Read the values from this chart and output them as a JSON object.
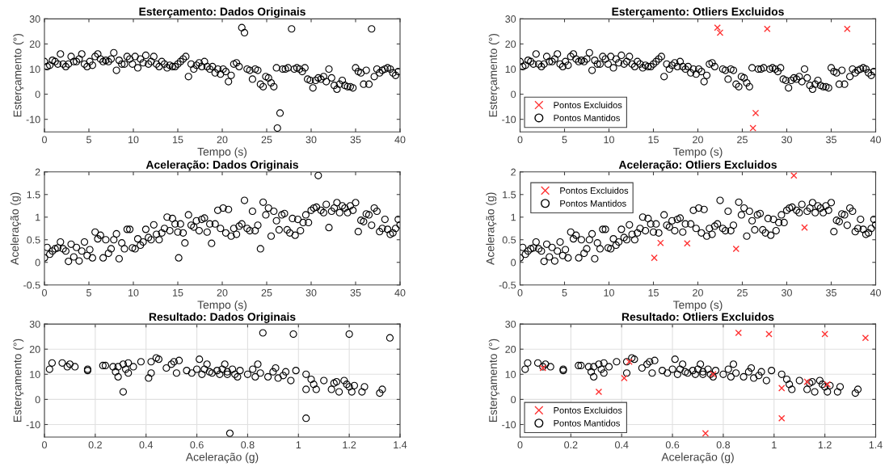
{
  "chart_data": [
    {
      "type": "scatter",
      "title": "Esterçamento: Dados Originais",
      "xlabel": "Tempo (s)",
      "ylabel": "Esterçamento (°)",
      "xlim": [
        0,
        40
      ],
      "xticks": [
        0,
        5,
        10,
        15,
        20,
        25,
        30,
        35,
        40
      ],
      "ylim": [
        -15,
        30
      ],
      "yticks": [
        -10,
        0,
        10,
        20,
        30
      ],
      "grid": false,
      "legend": false,
      "series": [
        {
          "marker": "circle",
          "color": "#000000",
          "x": [
            0,
            0.3,
            0.6,
            0.9,
            1.2,
            1.5,
            1.8,
            2.1,
            2.4,
            2.7,
            3,
            3.3,
            3.6,
            3.9,
            4.2,
            4.5,
            4.8,
            5.1,
            5.4,
            5.7,
            6,
            6.3,
            6.6,
            6.9,
            7.2,
            7.5,
            7.8,
            8.1,
            8.4,
            8.7,
            9,
            9.3,
            9.6,
            9.9,
            10.2,
            10.5,
            10.8,
            11.1,
            11.4,
            11.7,
            12,
            12.3,
            12.6,
            12.9,
            13.2,
            13.5,
            13.8,
            14.1,
            14.4,
            14.7,
            15,
            15.3,
            15.6,
            15.9,
            16.2,
            16.5,
            16.8,
            17.1,
            17.4,
            17.7,
            18,
            18.3,
            18.6,
            18.9,
            19.2,
            19.5,
            19.8,
            20.1,
            20.4,
            20.7,
            21,
            21.3,
            21.6,
            21.9,
            22.2,
            22.5,
            22.8,
            23.1,
            23.4,
            23.7,
            24,
            24.3,
            24.6,
            24.9,
            25.2,
            25.5,
            25.8,
            26.1,
            26.2,
            26.5,
            26.8,
            27.1,
            27.4,
            27.8,
            28.1,
            28.4,
            28.7,
            29,
            29.3,
            29.6,
            29.9,
            30.2,
            30.5,
            30.8,
            31.1,
            31.4,
            31.7,
            32,
            32.3,
            32.6,
            32.9,
            33.2,
            33.5,
            33.8,
            34.1,
            34.4,
            34.7,
            35,
            35.3,
            35.6,
            35.9,
            36.2,
            36.5,
            36.8,
            37.1,
            37.4,
            37.7,
            38,
            38.3,
            38.6,
            38.9,
            39.2,
            39.5,
            39.8
          ],
          "values": [
            13,
            11,
            11.5,
            13.5,
            13,
            12,
            16,
            12,
            11,
            12,
            15,
            13,
            13,
            14,
            16,
            12,
            11,
            13,
            11.5,
            15,
            16,
            14,
            13,
            13.5,
            13,
            14,
            16.5,
            9.5,
            13.5,
            12,
            12,
            15,
            14,
            12,
            15,
            10.5,
            14,
            12.5,
            15.5,
            12,
            13,
            15,
            12,
            11,
            13,
            12,
            10.5,
            11.5,
            11,
            11,
            12,
            13,
            14,
            15,
            7,
            12,
            10,
            11.5,
            12.5,
            11,
            13,
            11,
            10,
            11,
            8.5,
            10,
            8,
            10,
            9,
            5,
            7.5,
            12,
            12.5,
            11,
            26.5,
            24.5,
            10,
            9.5,
            6,
            10,
            9.5,
            4,
            3,
            7,
            6.5,
            4.5,
            3,
            10.5,
            -13.5,
            -7.5,
            10,
            10,
            10.5,
            26,
            10,
            10.5,
            10,
            9,
            10.5,
            6,
            5.5,
            2.5,
            5.5,
            6.5,
            6,
            7,
            5,
            10,
            6.5,
            3.5,
            2,
            4,
            5.5,
            3.5,
            3,
            3,
            2.5,
            10.5,
            9,
            8.5,
            4,
            9.5,
            4,
            26,
            7,
            10,
            8.5,
            9.5,
            10,
            10.5,
            10,
            8.5,
            7.5,
            9
          ]
        }
      ]
    },
    {
      "type": "scatter",
      "title": "Esterçamento: Otliers Excluidos",
      "xlabel": "Tempo (s)",
      "ylabel": "Esterçamento (°)",
      "xlim": [
        0,
        40
      ],
      "xticks": [
        0,
        5,
        10,
        15,
        20,
        25,
        30,
        35,
        40
      ],
      "ylim": [
        -15,
        30
      ],
      "yticks": [
        -10,
        0,
        10,
        20,
        30
      ],
      "grid": false,
      "legend": "bottom left",
      "series": [
        {
          "name": "Pontos Excluidos",
          "marker": "cross",
          "color": "#ff3333",
          "x": [
            22.2,
            22.5,
            26.2,
            26.5,
            27.8,
            36.8
          ],
          "values": [
            26.5,
            24.5,
            -13.5,
            -7.5,
            26,
            26
          ]
        },
        {
          "name": "Pontos Mantidos",
          "marker": "circle",
          "color": "#000000",
          "x": [
            0,
            0.3,
            0.6,
            0.9,
            1.2,
            1.5,
            1.8,
            2.1,
            2.4,
            2.7,
            3,
            3.3,
            3.6,
            3.9,
            4.2,
            4.5,
            4.8,
            5.1,
            5.4,
            5.7,
            6,
            6.3,
            6.6,
            6.9,
            7.2,
            7.5,
            7.8,
            8.1,
            8.4,
            8.7,
            9,
            9.3,
            9.6,
            9.9,
            10.2,
            10.5,
            10.8,
            11.1,
            11.4,
            11.7,
            12,
            12.3,
            12.6,
            12.9,
            13.2,
            13.5,
            13.8,
            14.1,
            14.4,
            14.7,
            15,
            15.3,
            15.6,
            15.9,
            16.2,
            16.5,
            16.8,
            17.1,
            17.4,
            17.7,
            18,
            18.3,
            18.6,
            18.9,
            19.2,
            19.5,
            19.8,
            20.1,
            20.4,
            20.7,
            21,
            21.3,
            21.6,
            21.9,
            22.8,
            23.1,
            23.4,
            23.7,
            24,
            24.3,
            24.6,
            24.9,
            25.2,
            25.5,
            25.8,
            26.1,
            26.8,
            27.1,
            27.4,
            28.1,
            28.4,
            28.7,
            29,
            29.3,
            29.6,
            29.9,
            30.2,
            30.5,
            30.8,
            31.1,
            31.4,
            31.7,
            32,
            32.3,
            32.6,
            32.9,
            33.2,
            33.5,
            33.8,
            34.1,
            34.4,
            34.7,
            35,
            35.3,
            35.6,
            35.9,
            36.2,
            36.5,
            37.1,
            37.4,
            37.7,
            38,
            38.3,
            38.6,
            38.9,
            39.2,
            39.5,
            39.8
          ],
          "values": [
            13,
            11,
            11.5,
            13.5,
            13,
            12,
            16,
            12,
            11,
            12,
            15,
            13,
            13,
            14,
            16,
            12,
            11,
            13,
            11.5,
            15,
            16,
            14,
            13,
            13.5,
            13,
            14,
            16.5,
            9.5,
            13.5,
            12,
            12,
            15,
            14,
            12,
            15,
            10.5,
            14,
            12.5,
            15.5,
            12,
            13,
            15,
            12,
            11,
            13,
            12,
            10.5,
            11.5,
            11,
            11,
            12,
            13,
            14,
            15,
            7,
            12,
            10,
            11.5,
            12.5,
            11,
            13,
            11,
            10,
            11,
            8.5,
            10,
            8,
            10,
            9,
            5,
            7.5,
            12,
            12.5,
            11,
            10,
            9.5,
            6,
            10,
            9.5,
            4,
            3,
            7,
            6.5,
            4.5,
            3,
            10.5,
            10,
            10,
            10.5,
            10,
            10.5,
            10,
            9,
            10.5,
            6,
            5.5,
            2.5,
            5.5,
            6.5,
            6,
            7,
            5,
            10,
            6.5,
            3.5,
            2,
            4,
            5.5,
            3.5,
            3,
            3,
            2.5,
            10.5,
            9,
            8.5,
            4,
            9.5,
            4,
            7,
            10,
            8.5,
            9.5,
            10,
            10.5,
            10,
            8.5,
            7.5,
            9
          ]
        }
      ]
    },
    {
      "type": "scatter",
      "title": "Aceleração: Dados Originais",
      "xlabel": "Tempo (s)",
      "ylabel": "Aceleração (g)",
      "xlim": [
        0,
        40
      ],
      "xticks": [
        0,
        5,
        10,
        15,
        20,
        25,
        30,
        35,
        40
      ],
      "ylim": [
        -0.5,
        2
      ],
      "yticks": [
        -0.5,
        0,
        0.5,
        1,
        1.5,
        2
      ],
      "grid": false,
      "legend": false,
      "series": [
        {
          "marker": "circle",
          "color": "#000000",
          "x": [
            0,
            0.3,
            0.6,
            0.9,
            1.2,
            1.5,
            1.8,
            2.1,
            2.4,
            2.7,
            3,
            3.3,
            3.6,
            3.9,
            4.2,
            4.5,
            4.8,
            5.1,
            5.4,
            5.7,
            6,
            6.3,
            6.6,
            6.9,
            7.2,
            7.5,
            7.8,
            8.1,
            8.4,
            8.7,
            9,
            9.3,
            9.6,
            9.9,
            10.2,
            10.5,
            10.8,
            11.1,
            11.4,
            11.7,
            12,
            12.3,
            12.6,
            12.9,
            13.2,
            13.5,
            13.8,
            14.1,
            14.4,
            14.7,
            15,
            15.1,
            15.3,
            15.6,
            15.8,
            16.2,
            16.5,
            16.8,
            17.1,
            17.4,
            17.7,
            18,
            18.3,
            18.6,
            18.8,
            19.2,
            19.5,
            19.8,
            20.1,
            20.4,
            20.7,
            21,
            21.3,
            21.6,
            21.9,
            22.2,
            22.5,
            22.8,
            23.1,
            23.4,
            23.7,
            24,
            24.3,
            24.6,
            24.9,
            25.2,
            25.5,
            25.8,
            26.1,
            26.4,
            26.7,
            27,
            27.3,
            27.6,
            27.9,
            28.2,
            28.5,
            28.8,
            29.1,
            29.4,
            29.7,
            30,
            30.3,
            30.6,
            30.8,
            31.1,
            31.4,
            31.7,
            32,
            32.3,
            32.6,
            32.9,
            33.2,
            33.5,
            33.8,
            34.1,
            34.4,
            34.7,
            35,
            35.3,
            35.6,
            35.9,
            36.2,
            36.5,
            36.8,
            37.1,
            37.4,
            37.7,
            38,
            38.3,
            38.6,
            38.9,
            39.2,
            39.5,
            39.8,
            40
          ],
          "values": [
            0.1,
            0.33,
            0.18,
            0.25,
            0.3,
            0.32,
            0.45,
            0.3,
            0.25,
            0.02,
            0.4,
            0.12,
            0.33,
            0.03,
            0.25,
            0.45,
            0.15,
            0.28,
            0.1,
            0.67,
            0.52,
            0.6,
            0.1,
            0.5,
            0.2,
            0.3,
            0.5,
            0.63,
            0.08,
            0.43,
            0.3,
            0.73,
            0.73,
            0.32,
            0.3,
            0.52,
            0.38,
            0.45,
            0.73,
            0.55,
            0.5,
            0.83,
            0.62,
            0.5,
            0.65,
            0.75,
            1,
            0.7,
            0.97,
            0.85,
            0.67,
            0.1,
            0.85,
            0.65,
            0.43,
            1.05,
            0.82,
            0.78,
            0.92,
            0.7,
            0.95,
            0.98,
            0.67,
            0.85,
            0.42,
            0.85,
            1.15,
            0.75,
            1.2,
            0.65,
            1.17,
            0.58,
            0.75,
            0.62,
            0.8,
            0.85,
            1.37,
            0.75,
            0.7,
            1.13,
            0.7,
            0.82,
            0.3,
            1.33,
            1.05,
            1.2,
            0.58,
            1.13,
            0.92,
            0.72,
            1.05,
            1.08,
            0.72,
            0.65,
            0.97,
            0.6,
            0.95,
            0.7,
            0.88,
            1.05,
            0.88,
            1.15,
            1.2,
            1.22,
            1.92,
            1.15,
            1.1,
            1.28,
            0.77,
            1.13,
            1.2,
            1.32,
            1.1,
            1.25,
            1.2,
            1.1,
            1.25,
            1.15,
            1.32,
            0.68,
            0.93,
            0.9,
            1.07,
            1.05,
            0.82,
            1.2,
            1.13,
            0.68,
            0.75,
            0.95,
            0.73,
            0.62,
            0.65,
            0.75,
            0.95,
            0.83
          ]
        }
      ]
    },
    {
      "type": "scatter",
      "title": "Aceleração: Otliers Excluidos",
      "xlabel": "Tempo (s)",
      "ylabel": "Aceleração (g)",
      "xlim": [
        0,
        40
      ],
      "xticks": [
        0,
        5,
        10,
        15,
        20,
        25,
        30,
        35,
        40
      ],
      "ylim": [
        -0.5,
        2
      ],
      "yticks": [
        -0.5,
        0,
        0.5,
        1,
        1.5,
        2
      ],
      "grid": false,
      "legend": "top left",
      "series": [
        {
          "name": "Pontos Excluidos",
          "marker": "cross",
          "color": "#ff3333",
          "x": [
            15.1,
            15.8,
            18.8,
            24.3,
            30.8,
            32
          ],
          "values": [
            0.1,
            0.43,
            0.42,
            0.3,
            1.92,
            0.77
          ]
        },
        {
          "name": "Pontos Mantidos",
          "marker": "circle",
          "color": "#000000",
          "x": [
            0,
            0.3,
            0.6,
            0.9,
            1.2,
            1.5,
            1.8,
            2.1,
            2.4,
            2.7,
            3,
            3.3,
            3.6,
            3.9,
            4.2,
            4.5,
            4.8,
            5.1,
            5.4,
            5.7,
            6,
            6.3,
            6.6,
            6.9,
            7.2,
            7.5,
            7.8,
            8.1,
            8.4,
            8.7,
            9,
            9.3,
            9.6,
            9.9,
            10.2,
            10.5,
            10.8,
            11.1,
            11.4,
            11.7,
            12,
            12.3,
            12.6,
            12.9,
            13.2,
            13.5,
            13.8,
            14.1,
            14.4,
            14.7,
            15,
            15.3,
            15.6,
            16.2,
            16.5,
            16.8,
            17.1,
            17.4,
            17.7,
            18,
            18.3,
            18.6,
            19.2,
            19.5,
            19.8,
            20.1,
            20.4,
            20.7,
            21,
            21.3,
            21.6,
            21.9,
            22.2,
            22.5,
            22.8,
            23.1,
            23.4,
            23.7,
            24,
            24.6,
            24.9,
            25.2,
            25.5,
            25.8,
            26.1,
            26.4,
            26.7,
            27,
            27.3,
            27.6,
            27.9,
            28.2,
            28.5,
            28.8,
            29.1,
            29.4,
            29.7,
            30,
            30.3,
            30.6,
            31.1,
            31.4,
            31.7,
            32.3,
            32.6,
            32.9,
            33.2,
            33.5,
            33.8,
            34.1,
            34.4,
            34.7,
            35,
            35.3,
            35.6,
            35.9,
            36.2,
            36.5,
            36.8,
            37.1,
            37.4,
            37.7,
            38,
            38.3,
            38.6,
            38.9,
            39.2,
            39.5,
            39.8,
            40
          ],
          "values": [
            0.1,
            0.33,
            0.18,
            0.25,
            0.3,
            0.32,
            0.45,
            0.3,
            0.25,
            0.02,
            0.4,
            0.12,
            0.33,
            0.03,
            0.25,
            0.45,
            0.15,
            0.28,
            0.1,
            0.67,
            0.52,
            0.6,
            0.1,
            0.5,
            0.2,
            0.3,
            0.5,
            0.63,
            0.08,
            0.43,
            0.3,
            0.73,
            0.73,
            0.32,
            0.3,
            0.52,
            0.38,
            0.45,
            0.73,
            0.55,
            0.5,
            0.83,
            0.62,
            0.5,
            0.65,
            0.75,
            1,
            0.7,
            0.97,
            0.85,
            0.67,
            0.85,
            0.65,
            1.05,
            0.82,
            0.78,
            0.92,
            0.7,
            0.95,
            0.98,
            0.67,
            0.85,
            0.85,
            1.15,
            0.75,
            1.2,
            0.65,
            1.17,
            0.58,
            0.75,
            0.62,
            0.8,
            0.85,
            1.37,
            0.75,
            0.7,
            1.13,
            0.7,
            0.82,
            1.33,
            1.05,
            1.2,
            0.58,
            1.13,
            0.92,
            0.72,
            1.05,
            1.08,
            0.72,
            0.65,
            0.97,
            0.6,
            0.95,
            0.7,
            0.88,
            1.05,
            0.88,
            1.15,
            1.2,
            1.22,
            1.15,
            1.1,
            1.28,
            1.13,
            1.2,
            1.32,
            1.1,
            1.25,
            1.2,
            1.1,
            1.25,
            1.15,
            1.32,
            0.68,
            0.93,
            0.9,
            1.07,
            1.05,
            0.82,
            1.2,
            1.13,
            0.68,
            0.75,
            0.95,
            0.73,
            0.62,
            0.65,
            0.75,
            0.95,
            0.83
          ]
        }
      ]
    },
    {
      "type": "scatter",
      "title": "Resultado: Dados Originais",
      "xlabel": "Aceleração (g)",
      "ylabel": "Esterçamento (°)",
      "xlim": [
        0,
        1.4
      ],
      "xticks": [
        0,
        0.2,
        0.4,
        0.6,
        0.8,
        1,
        1.2,
        1.4
      ],
      "ylim": [
        -15,
        30
      ],
      "yticks": [
        -10,
        0,
        10,
        20,
        30
      ],
      "grid": true,
      "legend": false,
      "series": [
        {
          "marker": "circle",
          "color": "#000000",
          "x": [
            0.02,
            0.03,
            0.07,
            0.09,
            0.1,
            0.12,
            0.17,
            0.17,
            0.23,
            0.24,
            0.27,
            0.28,
            0.29,
            0.29,
            0.31,
            0.31,
            0.32,
            0.33,
            0.33,
            0.35,
            0.38,
            0.41,
            0.42,
            0.42,
            0.44,
            0.45,
            0.48,
            0.5,
            0.51,
            0.52,
            0.53,
            0.56,
            0.58,
            0.6,
            0.61,
            0.62,
            0.63,
            0.64,
            0.65,
            0.66,
            0.68,
            0.69,
            0.7,
            0.71,
            0.72,
            0.72,
            0.73,
            0.74,
            0.75,
            0.76,
            0.77,
            0.8,
            0.82,
            0.83,
            0.84,
            0.85,
            0.86,
            0.88,
            0.9,
            0.91,
            0.92,
            0.94,
            0.95,
            0.97,
            0.98,
            0.99,
            1.03,
            1.03,
            1.03,
            1.05,
            1.06,
            1.07,
            1.1,
            1.13,
            1.14,
            1.15,
            1.16,
            1.18,
            1.19,
            1.2,
            1.2,
            1.21,
            1.22,
            1.25,
            1.26,
            1.32,
            1.33,
            1.36
          ],
          "values": [
            12,
            14.5,
            14.5,
            13,
            14,
            13,
            11.5,
            12,
            13.5,
            13.5,
            13,
            11,
            9,
            13,
            3,
            14,
            12,
            10.5,
            14.5,
            13,
            15,
            8.5,
            10.5,
            15,
            16.5,
            16,
            12.5,
            14,
            15,
            10.5,
            15.5,
            11.5,
            10.5,
            12,
            16,
            10,
            12,
            14,
            11,
            10.5,
            11.5,
            10,
            12,
            14,
            11,
            10,
            -13.5,
            12,
            10,
            9,
            11.5,
            10,
            12,
            9,
            14,
            10.5,
            26.5,
            9,
            11,
            12.5,
            8.5,
            9.5,
            11,
            7.5,
            26,
            11.5,
            10,
            4,
            -7.5,
            8,
            6,
            4,
            7.5,
            4,
            6.5,
            7,
            3,
            7.5,
            6,
            26,
            5,
            3,
            5.5,
            3,
            5,
            2.5,
            4,
            24.5
          ]
        }
      ]
    },
    {
      "type": "scatter",
      "title": "Resultado: Otliers Excluidos",
      "xlabel": "Aceleração (g)",
      "ylabel": "Esterçamento (°)",
      "xlim": [
        0,
        1.4
      ],
      "xticks": [
        0,
        0.2,
        0.4,
        0.6,
        0.8,
        1,
        1.2,
        1.4
      ],
      "ylim": [
        -15,
        30
      ],
      "yticks": [
        -10,
        0,
        10,
        20,
        30
      ],
      "grid": true,
      "legend": "bottom left",
      "series": [
        {
          "name": "Pontos Excluidos",
          "marker": "cross",
          "color": "#ff3333",
          "x": [
            0.09,
            0.31,
            0.41,
            0.43,
            0.73,
            0.76,
            0.86,
            0.98,
            1.03,
            1.03,
            1.13,
            1.2,
            1.21,
            1.36
          ],
          "values": [
            12.5,
            3,
            8.5,
            15,
            -13.5,
            10,
            26.5,
            26,
            4.5,
            -7.5,
            7,
            26,
            6,
            24.5
          ]
        },
        {
          "name": "Pontos Mantidos",
          "marker": "circle",
          "color": "#000000",
          "x": [
            0.02,
            0.03,
            0.07,
            0.09,
            0.1,
            0.12,
            0.17,
            0.17,
            0.23,
            0.24,
            0.27,
            0.28,
            0.29,
            0.29,
            0.31,
            0.32,
            0.33,
            0.33,
            0.35,
            0.38,
            0.42,
            0.42,
            0.44,
            0.45,
            0.48,
            0.5,
            0.51,
            0.52,
            0.53,
            0.56,
            0.58,
            0.6,
            0.61,
            0.62,
            0.63,
            0.64,
            0.65,
            0.66,
            0.68,
            0.69,
            0.7,
            0.71,
            0.72,
            0.72,
            0.74,
            0.75,
            0.76,
            0.77,
            0.8,
            0.82,
            0.83,
            0.84,
            0.85,
            0.88,
            0.9,
            0.91,
            0.92,
            0.94,
            0.95,
            0.97,
            0.99,
            1.03,
            1.05,
            1.06,
            1.07,
            1.1,
            1.13,
            1.14,
            1.15,
            1.16,
            1.18,
            1.19,
            1.2,
            1.21,
            1.22,
            1.25,
            1.26,
            1.32,
            1.33
          ],
          "values": [
            12,
            14.5,
            14.5,
            13,
            14,
            13,
            11.5,
            12,
            13.5,
            13.5,
            13,
            11,
            9,
            13,
            14,
            12,
            10.5,
            14.5,
            13,
            15,
            10.5,
            15,
            16.5,
            16,
            12.5,
            14,
            15,
            10.5,
            15.5,
            11.5,
            10.5,
            12,
            16,
            10,
            12,
            14,
            11,
            10.5,
            11.5,
            10,
            12,
            14,
            11,
            10,
            12,
            10,
            9,
            11.5,
            10,
            12,
            9,
            14,
            10.5,
            9,
            11,
            12.5,
            8.5,
            9.5,
            11,
            7.5,
            11.5,
            10,
            8,
            6,
            4,
            7.5,
            4,
            6.5,
            7,
            3,
            7.5,
            6,
            5,
            3,
            5.5,
            3,
            5,
            2.5,
            4
          ]
        }
      ]
    }
  ]
}
